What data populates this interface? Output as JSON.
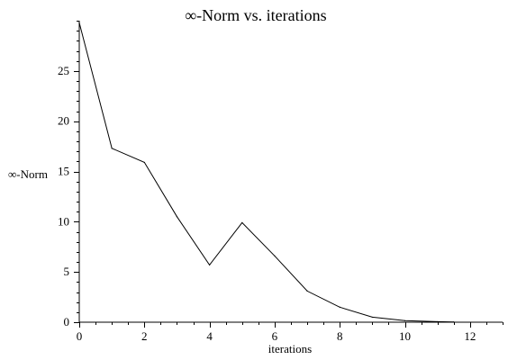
{
  "chart_data": {
    "type": "line",
    "title": "∞-Norm vs. iterations",
    "xlabel": "iterations",
    "ylabel": "∞-Norm",
    "xlim": [
      0,
      13
    ],
    "ylim": [
      0,
      30
    ],
    "x_ticks": [
      0,
      2,
      4,
      6,
      8,
      10,
      12
    ],
    "x_minor_step": 0.5,
    "y_ticks": [
      0,
      5,
      10,
      15,
      20,
      25
    ],
    "y_minor_step": 1,
    "grid": false,
    "legend": "none",
    "line_color": "#000000",
    "series": [
      {
        "x": [
          0,
          1,
          2,
          3,
          4,
          5,
          6,
          7,
          8,
          9,
          10,
          11,
          11.5
        ],
        "values": [
          29.8,
          17.3,
          15.9,
          10.5,
          5.7,
          9.9,
          6.6,
          3.1,
          1.5,
          0.5,
          0.15,
          0.05,
          0.02
        ]
      }
    ]
  }
}
